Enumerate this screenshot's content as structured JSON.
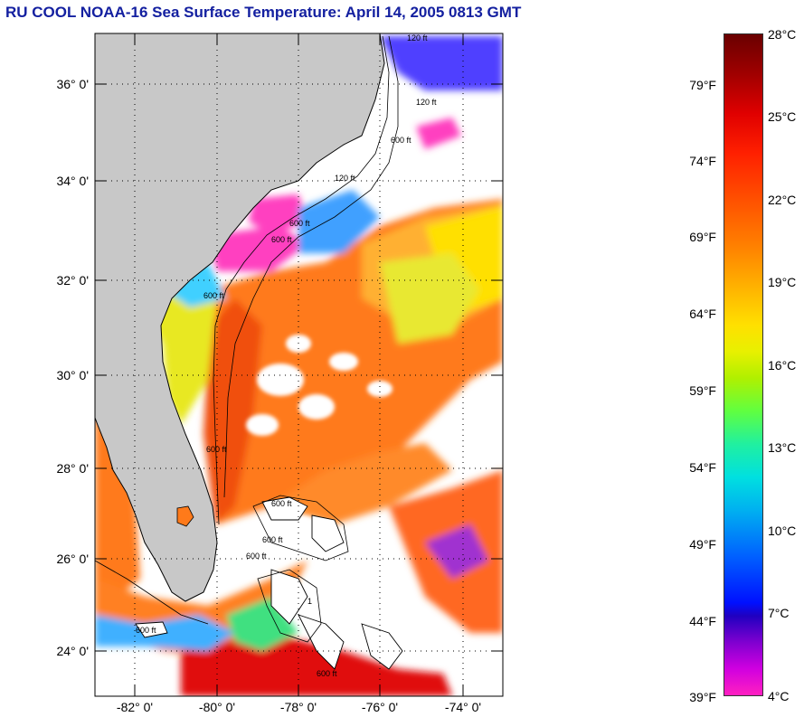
{
  "title": "RU COOL  NOAA-16  Sea Surface Temperature:  April 14, 2005 0813 GMT",
  "map": {
    "lat_labels": [
      "36° 0'",
      "34° 0'",
      "32° 0'",
      "30° 0'",
      "28° 0'",
      "26° 0'",
      "24° 0'"
    ],
    "lon_labels": [
      "-82° 0'",
      "-80° 0'",
      "-78° 0'",
      "-76° 0'",
      "-74° 0'"
    ],
    "isobath_labels": [
      "120 ft",
      "600 ft",
      "120 ft",
      "600 ft",
      "600 ft",
      "600 ft",
      "600 ft",
      "600 ft",
      "600 ft",
      "600 ft",
      "600 ft",
      "600 ft",
      "120 ft",
      "1"
    ],
    "colors": {
      "land": "#c8c8c8",
      "cloud": "#ffffff",
      "coast": "#000000",
      "warm": "#ff7a1a",
      "hot": "#e01010",
      "cool": "#ffe000",
      "cold": "#ff40c0"
    }
  },
  "colorbar": {
    "fahrenheit": [
      "79°F",
      "74°F",
      "69°F",
      "64°F",
      "59°F",
      "54°F",
      "49°F",
      "44°F",
      "39°F"
    ],
    "celsius": [
      "28°C",
      "25°C",
      "22°C",
      "19°C",
      "16°C",
      "13°C",
      "10°C",
      "7°C",
      "4°C"
    ],
    "celsius_range": [
      4,
      28
    ]
  }
}
